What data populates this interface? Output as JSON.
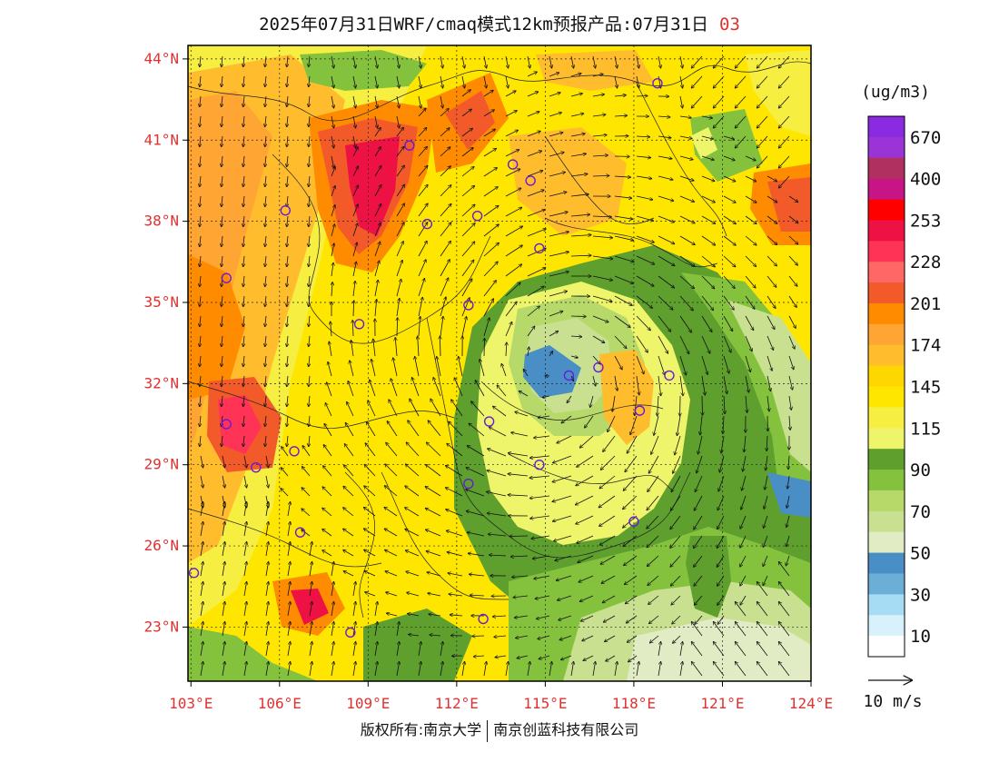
{
  "header": {
    "title": "2025年07月31日WRF/cmaq模式12km预报产品:07月31日",
    "hour": "03"
  },
  "axes": {
    "lat_labels": [
      "44°N",
      "41°N",
      "38°N",
      "35°N",
      "32°N",
      "29°N",
      "26°N",
      "23°N"
    ],
    "lat_values": [
      44,
      41,
      38,
      35,
      32,
      29,
      26,
      23
    ],
    "lon_labels": [
      "103°E",
      "106°E",
      "109°E",
      "112°E",
      "115°E",
      "118°E",
      "121°E",
      "124°E"
    ],
    "lon_values": [
      103,
      106,
      109,
      112,
      115,
      118,
      121,
      124
    ]
  },
  "colorbar": {
    "unit": "(ug/m3)",
    "labels": [
      "670",
      "400",
      "253",
      "228",
      "201",
      "174",
      "145",
      "115",
      "90",
      "70",
      "50",
      "30",
      "10"
    ],
    "colors_top_to_bottom": [
      "#8a2be2",
      "#9b34d6",
      "#b03060",
      "#c71585",
      "#ff0000",
      "#ee1144",
      "#ff3355",
      "#ff6666",
      "#f25a2a",
      "#ff8c00",
      "#ffa533",
      "#ffbd2e",
      "#ffd700",
      "#ffe600",
      "#f6ee40",
      "#eef56a",
      "#5e9f2e",
      "#84c23e",
      "#b6d96a",
      "#c8e090",
      "#e2ecc4",
      "#4a8ec6",
      "#6baed6",
      "#a6dcf4",
      "#d8f1fb",
      "#ffffff"
    ]
  },
  "vector_legend": {
    "label": "10 m/s"
  },
  "cities": [
    {
      "lon": 118.8,
      "lat": 43.1
    },
    {
      "lon": 110.4,
      "lat": 40.8
    },
    {
      "lon": 113.9,
      "lat": 40.1
    },
    {
      "lon": 114.5,
      "lat": 39.5
    },
    {
      "lon": 106.2,
      "lat": 38.4
    },
    {
      "lon": 111.0,
      "lat": 37.9
    },
    {
      "lon": 112.7,
      "lat": 38.2
    },
    {
      "lon": 114.8,
      "lat": 37.0
    },
    {
      "lon": 104.2,
      "lat": 35.9
    },
    {
      "lon": 112.4,
      "lat": 34.9
    },
    {
      "lon": 108.7,
      "lat": 34.2
    },
    {
      "lon": 116.8,
      "lat": 32.6
    },
    {
      "lon": 115.8,
      "lat": 32.3
    },
    {
      "lon": 119.2,
      "lat": 32.3
    },
    {
      "lon": 118.2,
      "lat": 31.0
    },
    {
      "lon": 113.1,
      "lat": 30.6
    },
    {
      "lon": 104.2,
      "lat": 30.5
    },
    {
      "lon": 106.5,
      "lat": 29.5
    },
    {
      "lon": 105.2,
      "lat": 28.9
    },
    {
      "lon": 114.8,
      "lat": 29.0
    },
    {
      "lon": 112.4,
      "lat": 28.3
    },
    {
      "lon": 118.0,
      "lat": 26.9
    },
    {
      "lon": 106.7,
      "lat": 26.5
    },
    {
      "lon": 103.1,
      "lat": 25.0
    },
    {
      "lon": 112.9,
      "lat": 23.3
    },
    {
      "lon": 108.4,
      "lat": 22.8
    }
  ],
  "footer": {
    "left": "版权所有:南京大学",
    "right": "南京创蓝科技有限公司"
  }
}
